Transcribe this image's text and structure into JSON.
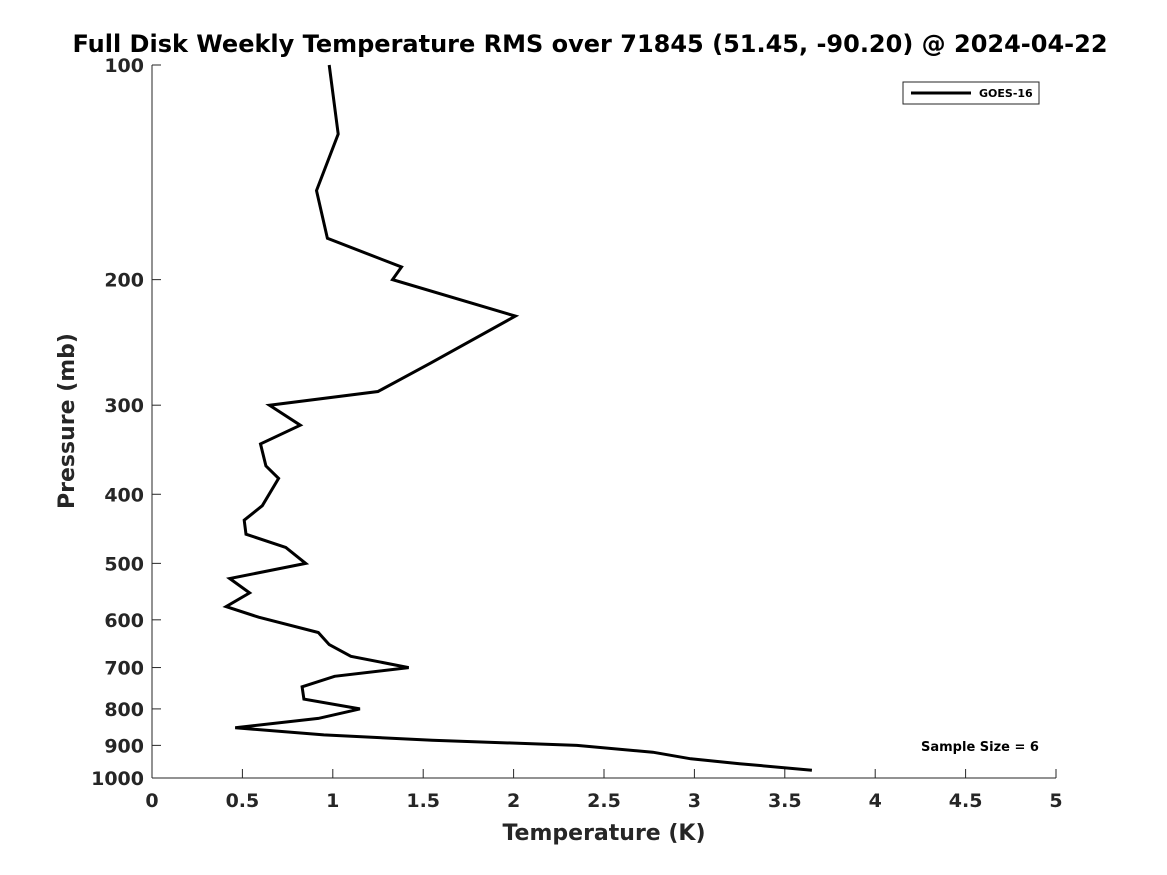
{
  "chart_data": {
    "type": "line",
    "title": "Full Disk Weekly Temperature RMS over 71845 (51.45, -90.20) @ 2024-04-22",
    "xlabel": "Temperature (K)",
    "ylabel": "Pressure (mb)",
    "xlim": [
      0,
      5
    ],
    "ylim": [
      100,
      1000
    ],
    "y_scale": "log",
    "y_reversed": true,
    "grid": false,
    "legend_position": "top-right",
    "x_ticks": [
      "0",
      "0.5",
      "1",
      "1.5",
      "2",
      "2.5",
      "3",
      "3.5",
      "4",
      "4.5",
      "5"
    ],
    "y_ticks": [
      "100",
      "200",
      "300",
      "400",
      "500",
      "600",
      "700",
      "800",
      "900",
      "1000"
    ],
    "series": [
      {
        "name": "GOES-16",
        "color": "#000000",
        "points": [
          {
            "x": 0.98,
            "y": 100
          },
          {
            "x": 1.03,
            "y": 125
          },
          {
            "x": 0.91,
            "y": 150
          },
          {
            "x": 0.97,
            "y": 175
          },
          {
            "x": 1.38,
            "y": 192
          },
          {
            "x": 1.33,
            "y": 200
          },
          {
            "x": 2.01,
            "y": 225
          },
          {
            "x": 1.54,
            "y": 262
          },
          {
            "x": 1.25,
            "y": 287
          },
          {
            "x": 0.65,
            "y": 300
          },
          {
            "x": 0.82,
            "y": 320
          },
          {
            "x": 0.6,
            "y": 340
          },
          {
            "x": 0.63,
            "y": 365
          },
          {
            "x": 0.7,
            "y": 380
          },
          {
            "x": 0.61,
            "y": 415
          },
          {
            "x": 0.51,
            "y": 435
          },
          {
            "x": 0.52,
            "y": 455
          },
          {
            "x": 0.74,
            "y": 475
          },
          {
            "x": 0.85,
            "y": 500
          },
          {
            "x": 0.43,
            "y": 525
          },
          {
            "x": 0.54,
            "y": 550
          },
          {
            "x": 0.41,
            "y": 575
          },
          {
            "x": 0.59,
            "y": 595
          },
          {
            "x": 0.92,
            "y": 625
          },
          {
            "x": 0.98,
            "y": 650
          },
          {
            "x": 1.1,
            "y": 675
          },
          {
            "x": 1.42,
            "y": 700
          },
          {
            "x": 1.01,
            "y": 720
          },
          {
            "x": 0.83,
            "y": 745
          },
          {
            "x": 0.84,
            "y": 775
          },
          {
            "x": 1.15,
            "y": 800
          },
          {
            "x": 0.92,
            "y": 825
          },
          {
            "x": 0.46,
            "y": 850
          },
          {
            "x": 0.95,
            "y": 870
          },
          {
            "x": 1.55,
            "y": 885
          },
          {
            "x": 2.35,
            "y": 900
          },
          {
            "x": 2.77,
            "y": 920
          },
          {
            "x": 2.98,
            "y": 940
          },
          {
            "x": 3.25,
            "y": 955
          },
          {
            "x": 3.65,
            "y": 975
          }
        ]
      }
    ],
    "annotations": [
      {
        "text": "Sample Size = 6",
        "position": "bottom-right"
      }
    ]
  }
}
